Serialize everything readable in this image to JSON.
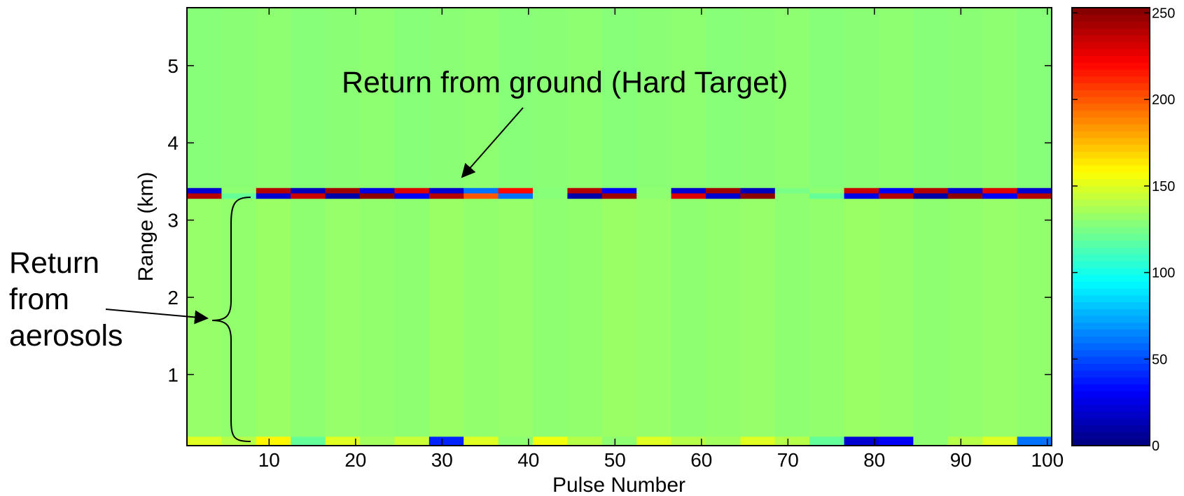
{
  "chart_data": {
    "type": "heatmap",
    "xlabel": "Pulse Number",
    "ylabel": "Range (km)",
    "xlim": [
      0.5,
      100.5
    ],
    "ylim": [
      0.08,
      5.75
    ],
    "xticks": [
      10,
      20,
      30,
      40,
      50,
      60,
      70,
      80,
      90,
      100
    ],
    "yticks": [
      1,
      2,
      3,
      4,
      5
    ],
    "clim": [
      0,
      253
    ],
    "cticks": [
      0,
      50,
      100,
      150,
      200,
      250
    ],
    "colormap": "jet",
    "x_edges": [
      0.5,
      4.5,
      8.5,
      12.5,
      16.5,
      20.5,
      24.5,
      28.5,
      32.5,
      36.5,
      40.5,
      44.5,
      48.5,
      52.5,
      56.5,
      60.5,
      64.5,
      68.5,
      72.5,
      76.5,
      80.5,
      84.5,
      88.5,
      92.5,
      96.5,
      100.5
    ],
    "y_edges": [
      0.08,
      0.2,
      3.28,
      3.35,
      3.42,
      5.75
    ],
    "z": [
      [
        150,
        140,
        160,
        120,
        150,
        135,
        145,
        40,
        150,
        130,
        155,
        140,
        130,
        150,
        140,
        135,
        150,
        140,
        120,
        20,
        30,
        130,
        140,
        150,
        60
      ],
      [
        132,
        131,
        133,
        130,
        132,
        131,
        130,
        133,
        131,
        132,
        130,
        131,
        133,
        132,
        130,
        131,
        132,
        130,
        131,
        133,
        132,
        130,
        131,
        132,
        131
      ],
      [
        240,
        120,
        20,
        235,
        10,
        250,
        30,
        240,
        200,
        60,
        128,
        10,
        245,
        130,
        230,
        20,
        250,
        130,
        120,
        25,
        240,
        10,
        250,
        30,
        240
      ],
      [
        20,
        130,
        240,
        15,
        245,
        25,
        230,
        20,
        60,
        220,
        128,
        240,
        30,
        130,
        20,
        245,
        15,
        125,
        130,
        235,
        30,
        240,
        20,
        230,
        20
      ],
      [
        128,
        129,
        130,
        128,
        129,
        130,
        128,
        129,
        130,
        128,
        129,
        130,
        128,
        129,
        130,
        128,
        129,
        130,
        128,
        129,
        130,
        128,
        129,
        130,
        128
      ]
    ],
    "annotations": [
      "Return from ground (Hard Target)",
      "Return from aerosols"
    ]
  }
}
